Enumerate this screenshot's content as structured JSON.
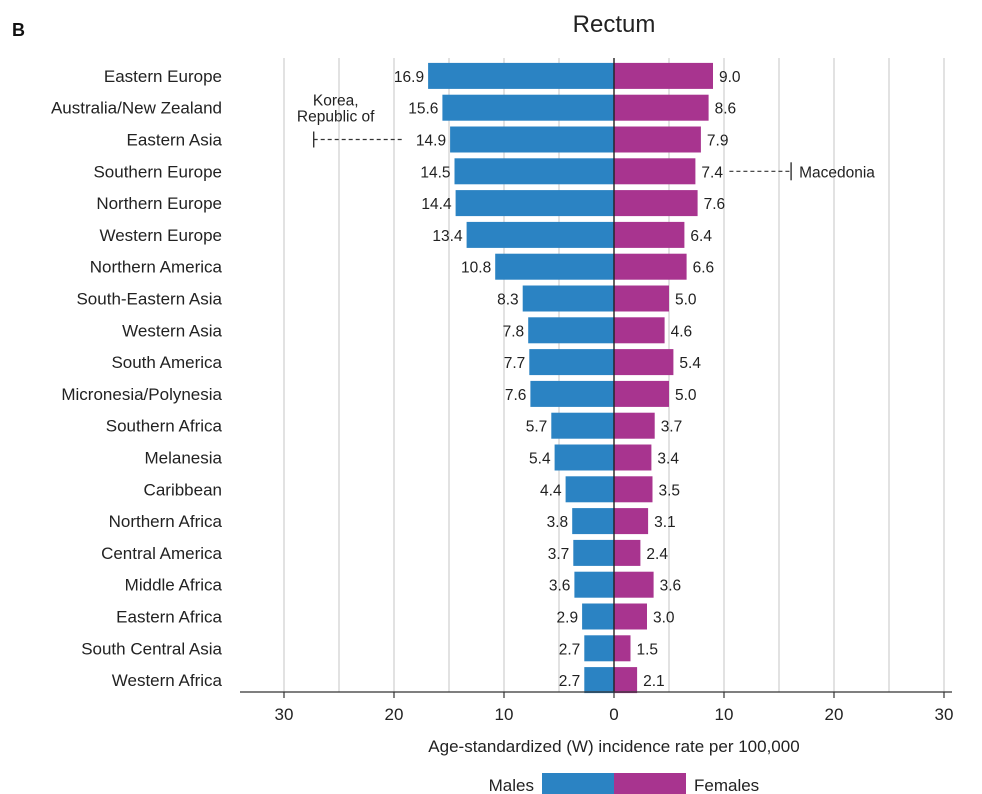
{
  "chart_data": {
    "type": "bar",
    "orientation": "horizontal-diverging",
    "panel_letter": "B",
    "title": "Rectum",
    "xlabel": "Age-standardized (W) incidence rate per 100,000",
    "xlim": [
      -30,
      30
    ],
    "ticks": [
      {
        "value": -30,
        "label": "30"
      },
      {
        "value": -20,
        "label": "20"
      },
      {
        "value": -10,
        "label": "10"
      },
      {
        "value": 0,
        "label": "0"
      },
      {
        "value": 10,
        "label": "10"
      },
      {
        "value": 20,
        "label": "20"
      },
      {
        "value": 30,
        "label": "30"
      }
    ],
    "gridlines": [
      -30,
      -25,
      -20,
      -15,
      -10,
      -5,
      5,
      10,
      15,
      20,
      25,
      30
    ],
    "categories": [
      "Eastern Europe",
      "Australia/New Zealand",
      "Eastern Asia",
      "Southern Europe",
      "Northern Europe",
      "Western Europe",
      "Northern America",
      "South-Eastern Asia",
      "Western Asia",
      "South America",
      "Micronesia/Polynesia",
      "Southern Africa",
      "Melanesia",
      "Caribbean",
      "Northern Africa",
      "Central America",
      "Middle Africa",
      "Eastern Africa",
      "South Central Asia",
      "Western Africa"
    ],
    "series": [
      {
        "name": "Males",
        "side": "left",
        "color": "#2b83c3",
        "values": [
          16.9,
          15.6,
          14.9,
          14.5,
          14.4,
          13.4,
          10.8,
          8.3,
          7.8,
          7.7,
          7.6,
          5.7,
          5.4,
          4.4,
          3.8,
          3.7,
          3.6,
          2.9,
          2.7,
          2.7
        ],
        "labels": [
          "16.9",
          "15.6",
          "14.9",
          "14.5",
          "14.4",
          "13.4",
          "10.8",
          "8.3",
          "7.8",
          "7.7",
          "7.6",
          "5.7",
          "5.4",
          "4.4",
          "3.8",
          "3.7",
          "3.6",
          "2.9",
          "2.7",
          "2.7"
        ]
      },
      {
        "name": "Females",
        "side": "right",
        "color": "#a8348f",
        "values": [
          9.0,
          8.6,
          7.9,
          7.4,
          7.6,
          6.4,
          6.6,
          5.0,
          4.6,
          5.4,
          5.0,
          3.7,
          3.4,
          3.5,
          3.1,
          2.4,
          3.6,
          3.0,
          1.5,
          2.1
        ],
        "labels": [
          "9.0",
          "8.6",
          "7.9",
          "7.4",
          "7.6",
          "6.4",
          "6.6",
          "5.0",
          "4.6",
          "5.4",
          "5.0",
          "3.7",
          "3.4",
          "3.5",
          "3.1",
          "2.4",
          "3.6",
          "3.0",
          "1.5",
          "2.1"
        ]
      }
    ],
    "annotations": [
      {
        "text_lines": [
          "Korea,",
          "Republic of"
        ],
        "category": "Eastern Asia",
        "series": "Males",
        "value": 27.3
      },
      {
        "text_lines": [
          "Macedonia"
        ],
        "category": "Southern Europe",
        "series": "Females",
        "value": 16.1
      }
    ],
    "legend": {
      "placement": "bottom",
      "entries": [
        "Males",
        "Females"
      ]
    },
    "grid": true
  }
}
